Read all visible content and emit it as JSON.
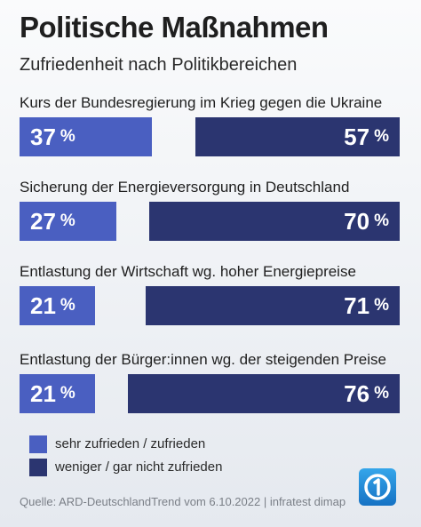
{
  "header": {
    "title": "Politische Maßnahmen",
    "subtitle": "Zufriedenheit nach Politikbereichen"
  },
  "chart_data": {
    "type": "bar",
    "orientation": "horizontal-diverging",
    "unit": "%",
    "categories": [
      "Kurs der Bundesregierung im Krieg gegen die Ukraine",
      "Sicherung der Energieversorgung in Deutschland",
      "Entlastung der Wirtschaft wg. hoher Energiepreise",
      "Entlastung der Bürger:innen wg. der steigenden Preise"
    ],
    "series": [
      {
        "name": "sehr zufrieden / zufrieden",
        "values": [
          37,
          27,
          21,
          21
        ],
        "color": "#4a5fc1"
      },
      {
        "name": "weniger / gar nicht zufrieden",
        "values": [
          57,
          70,
          71,
          76
        ],
        "color": "#2b3570"
      }
    ],
    "legend_position": "bottom-left",
    "grid": false
  },
  "legend": {
    "items": [
      {
        "label": "sehr zufrieden / zufrieden",
        "color": "#4a5fc1"
      },
      {
        "label": "weniger / gar nicht zufrieden",
        "color": "#2b3570"
      }
    ]
  },
  "source": "Quelle: ARD-DeutschlandTrend vom 6.10.2022 | infratest dimap",
  "logo": {
    "icon": "ard-one-logo-icon",
    "color": "#1e8fd6"
  }
}
